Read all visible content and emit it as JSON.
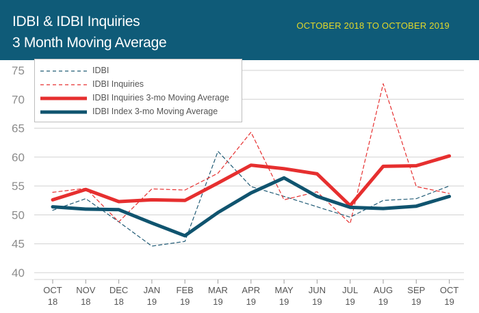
{
  "header": {
    "title_line1": "IDBI & IDBI Inquiries",
    "title_line2": "3 Month Moving Average",
    "date_range": "OCTOBER 2018 TO OCTOBER 2019"
  },
  "colors": {
    "header_bg": "#0f5b78",
    "date_range": "#e3d92a",
    "idbi": "#1f5a75",
    "idbi_inquiries": "#e62f2f",
    "inquiries_ma": "#e62f2f",
    "idbi_ma": "#10546f",
    "grid": "#d0d0d0"
  },
  "chart_data": {
    "type": "line",
    "title": "IDBI & IDBI Inquiries 3 Month Moving Average",
    "subtitle": "OCTOBER 2018 TO OCTOBER 2019",
    "categories": [
      "OCT 18",
      "NOV 18",
      "DEC 18",
      "JAN 19",
      "FEB 19",
      "MAR 19",
      "APR 19",
      "MAY 19",
      "JUN 19",
      "JUL 19",
      "AUG 19",
      "SEP 19",
      "OCT 19"
    ],
    "x_ticks": [
      {
        "month": "OCT",
        "year": "18"
      },
      {
        "month": "NOV",
        "year": "18"
      },
      {
        "month": "DEC",
        "year": "18"
      },
      {
        "month": "JAN",
        "year": "19"
      },
      {
        "month": "FEB",
        "year": "19"
      },
      {
        "month": "MAR",
        "year": "19"
      },
      {
        "month": "APR",
        "year": "19"
      },
      {
        "month": "MAY",
        "year": "19"
      },
      {
        "month": "JUN",
        "year": "19"
      },
      {
        "month": "JUL",
        "year": "19"
      },
      {
        "month": "AUG",
        "year": "19"
      },
      {
        "month": "SEP",
        "year": "19"
      },
      {
        "month": "OCT",
        "year": "19"
      }
    ],
    "y_ticks": [
      "75",
      "70",
      "65",
      "60",
      "55",
      "50",
      "45",
      "40"
    ],
    "ylim": [
      40,
      75
    ],
    "grid": true,
    "legend_position": "top-left",
    "series": [
      {
        "name": "IDBI",
        "style": "dashed-thin",
        "values": [
          50.8,
          52.8,
          48.8,
          44.6,
          45.4,
          61.0,
          54.9,
          53.2,
          51.4,
          49.6,
          52.5,
          52.8,
          55.0
        ]
      },
      {
        "name": "IDBI Inquiries",
        "style": "dashed-thin",
        "values": [
          53.9,
          54.6,
          48.8,
          54.5,
          54.3,
          57.2,
          64.3,
          52.6,
          54.0,
          48.5,
          72.7,
          54.9,
          53.7
        ]
      },
      {
        "name": "IDBI Inquiries 3-mo Moving Average",
        "style": "solid-thick",
        "values": [
          52.6,
          54.4,
          52.3,
          52.6,
          52.5,
          55.5,
          58.6,
          58.0,
          57.1,
          51.6,
          58.4,
          58.5,
          60.2
        ]
      },
      {
        "name": "IDBI Index 3-mo Moving Average",
        "style": "solid-thick",
        "values": [
          51.4,
          51.0,
          50.9,
          48.6,
          46.4,
          50.4,
          53.8,
          56.4,
          53.2,
          51.3,
          51.1,
          51.5,
          53.2
        ]
      }
    ]
  }
}
